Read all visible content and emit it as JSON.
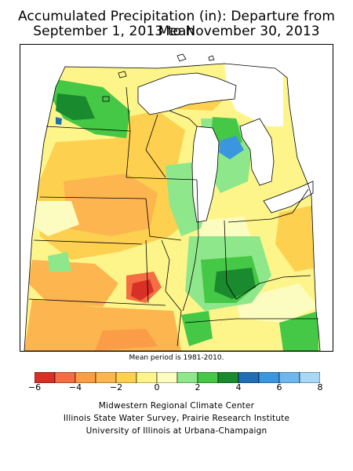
{
  "title": {
    "line1": "Accumulated Precipitation (in): Departure from Mean",
    "line2": "September 1, 2013 to November 30, 2013"
  },
  "map": {
    "note": "Mean period is 1981-2010."
  },
  "legend": {
    "bins": [
      {
        "min": -6,
        "max": -5,
        "color": "#d73027"
      },
      {
        "min": -5,
        "max": -4,
        "color": "#f46d43"
      },
      {
        "min": -4,
        "max": -3,
        "color": "#fa9d46"
      },
      {
        "min": -3,
        "max": -2,
        "color": "#fdb54f"
      },
      {
        "min": -2,
        "max": -1,
        "color": "#fdd04f"
      },
      {
        "min": -1,
        "max": 0,
        "color": "#fdf58a"
      },
      {
        "min": 0,
        "max": 1,
        "color": "#fcfcc0"
      },
      {
        "min": 1,
        "max": 2,
        "color": "#8ee78a"
      },
      {
        "min": 2,
        "max": 3,
        "color": "#45c845"
      },
      {
        "min": 3,
        "max": 4,
        "color": "#1a8a2e"
      },
      {
        "min": 4,
        "max": 5,
        "color": "#1e6fb8"
      },
      {
        "min": 5,
        "max": 6,
        "color": "#3a96de"
      },
      {
        "min": 6,
        "max": 7,
        "color": "#6fb8ec"
      },
      {
        "min": 7,
        "max": 8,
        "color": "#a7d8f5"
      }
    ],
    "ticks": [
      "−6",
      "−4",
      "−2",
      "0",
      "2",
      "4",
      "6",
      "8"
    ]
  },
  "credits": {
    "line1": "Midwestern Regional Climate Center",
    "line2": "Illinois State Water Survey, Prairie Research Institute",
    "line3": "University of Illinois at Urbana-Champaign"
  },
  "colors": {
    "water": "#ffffff",
    "outside": "#ffffff",
    "border": "#000000"
  }
}
